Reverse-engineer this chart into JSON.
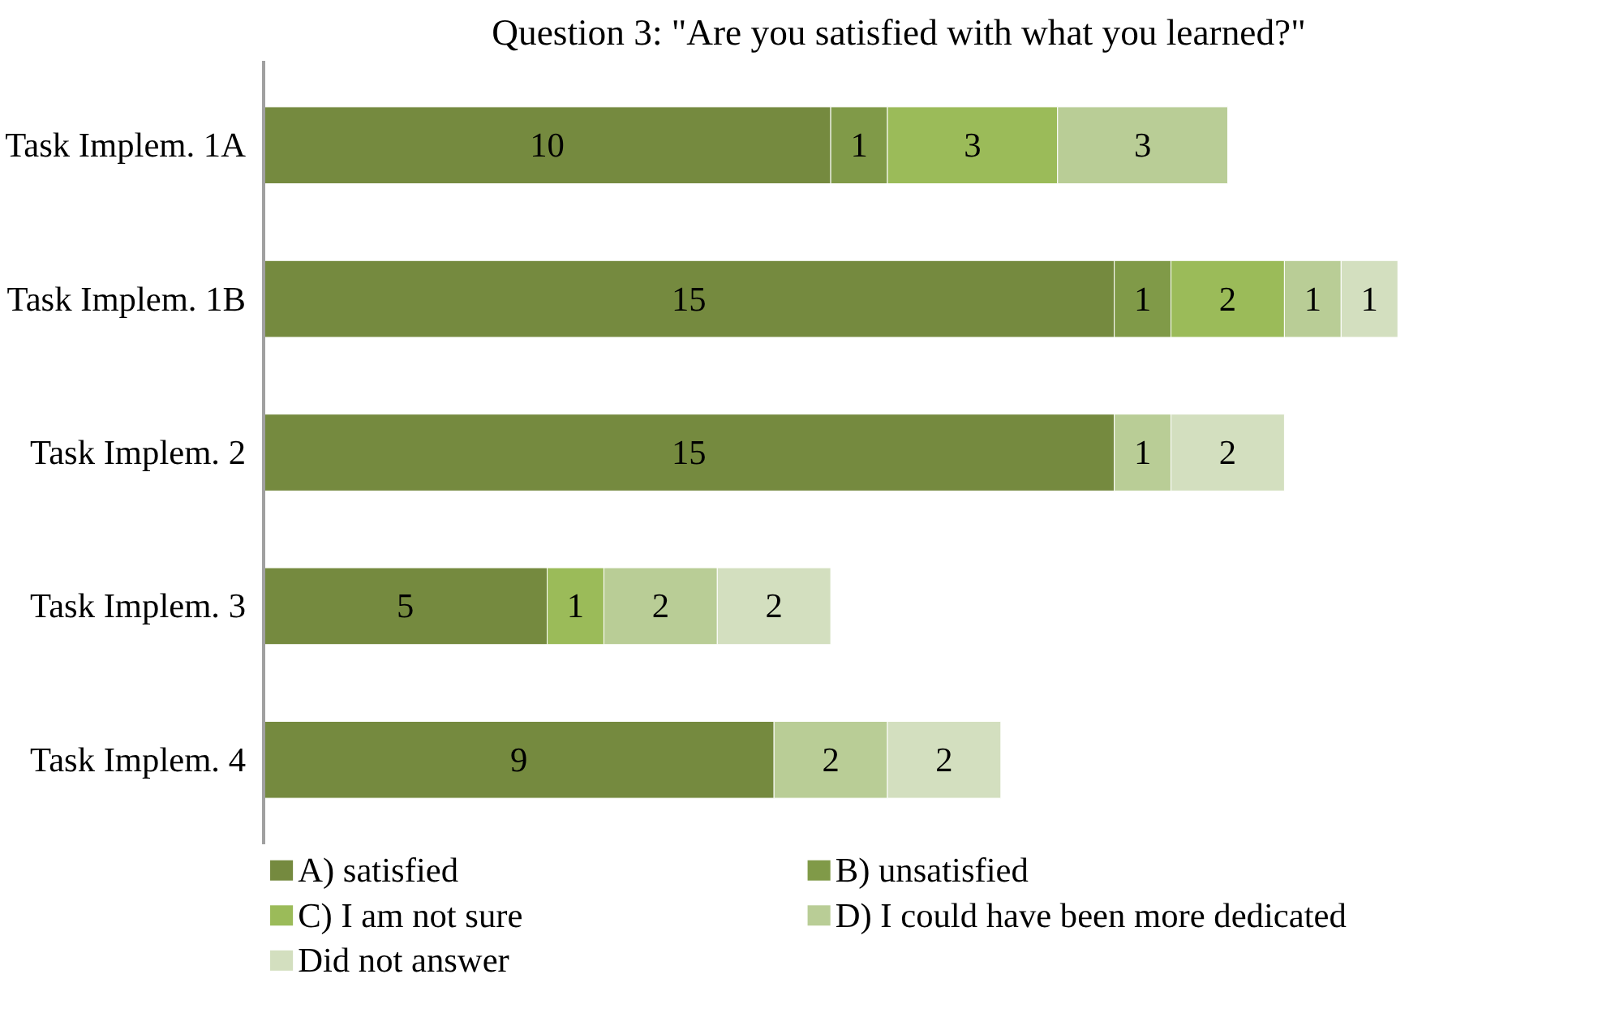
{
  "chart_data": {
    "type": "bar",
    "orientation": "horizontal",
    "stacked": true,
    "title": "Question 3: \"Are you satisfied with what you learned?\"",
    "categories": [
      "Task Implem. 1A",
      "Task Implem. 1B",
      "Task Implem. 2",
      "Task Implem. 3",
      "Task Implem. 4"
    ],
    "series": [
      {
        "name": "A) satisfied",
        "color": "#758a3f",
        "values": [
          10,
          15,
          15,
          5,
          9
        ]
      },
      {
        "name": "B) unsatisfied",
        "color": "#809a48",
        "values": [
          1,
          1,
          null,
          null,
          null
        ]
      },
      {
        "name": "C) I am not sure",
        "color": "#9bbb59",
        "values": [
          3,
          2,
          null,
          1,
          null
        ]
      },
      {
        "name": "D) I could have been more dedicated",
        "color": "#b9cd96",
        "values": [
          3,
          1,
          1,
          2,
          2
        ]
      },
      {
        "name": "Did not answer",
        "color": "#d3dfbf",
        "values": [
          null,
          1,
          2,
          2,
          2
        ]
      }
    ],
    "data_labels": true,
    "legend": "bottom",
    "grid": false
  }
}
